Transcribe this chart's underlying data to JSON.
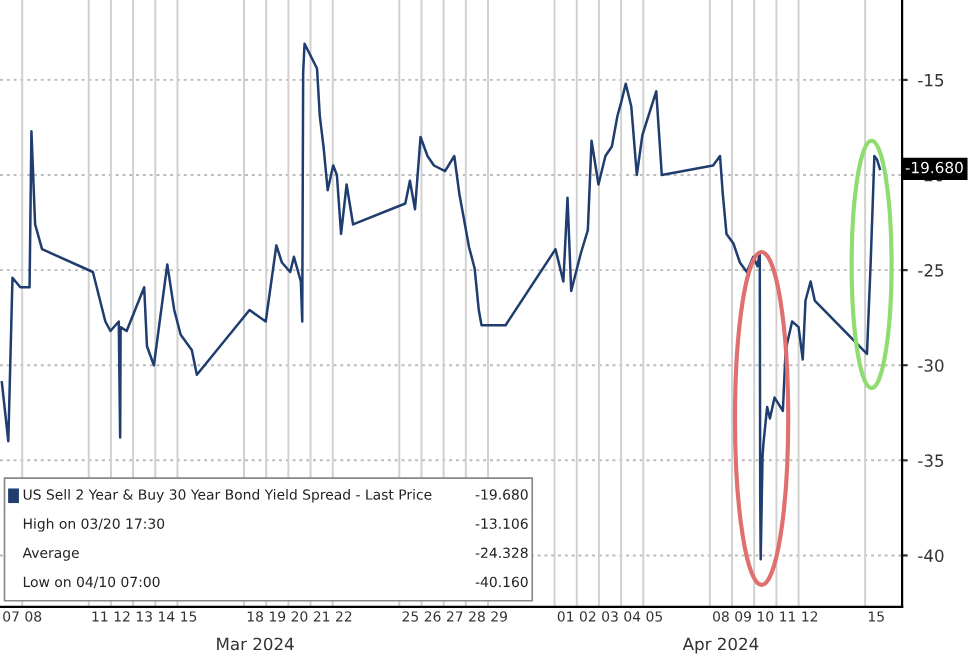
{
  "chart_data": {
    "type": "line",
    "x": [
      "2024-03-07T02:00",
      "2024-03-07T09:00",
      "2024-03-07T13:30",
      "2024-03-07T22:00",
      "2024-03-08T08:00",
      "2024-03-08T10:00",
      "2024-03-08T14:00",
      "2024-03-08T21:30",
      "2024-03-11T04:30",
      "2024-03-11T18:00",
      "2024-03-11T23:30",
      "2024-03-12T08:30",
      "2024-03-12T10:00",
      "2024-03-12T10:30",
      "2024-03-12T17:00",
      "2024-03-13T12:00",
      "2024-03-13T15:00",
      "2024-03-13T22:30",
      "2024-03-14T13:00",
      "2024-03-14T20:30",
      "2024-03-15T03:30",
      "2024-03-15T15:30",
      "2024-03-15T21:00",
      "2024-03-18T06:00",
      "2024-03-18T23:30",
      "2024-03-19T11:00",
      "2024-03-19T17:00",
      "2024-03-20T02:00",
      "2024-03-20T06:00",
      "2024-03-20T13:30",
      "2024-03-20T15:00",
      "2024-03-20T16:00",
      "2024-03-20T17:30",
      "2024-03-21T07:00",
      "2024-03-21T10:00",
      "2024-03-21T14:00",
      "2024-03-21T18:30",
      "2024-03-22T00:30",
      "2024-03-22T04:30",
      "2024-03-22T09:00",
      "2024-03-22T15:00",
      "2024-03-22T22:00",
      "2024-03-25T06:30",
      "2024-03-25T11:30",
      "2024-03-25T17:00",
      "2024-03-25T23:00",
      "2024-03-26T06:30",
      "2024-03-26T13:30",
      "2024-03-27T01:30",
      "2024-03-27T11:30",
      "2024-03-27T17:00",
      "2024-03-28T03:30",
      "2024-03-28T09:30",
      "2024-03-28T14:00",
      "2024-03-28T17:00",
      "2024-03-29T19:00",
      "2024-04-01T01:00",
      "2024-04-01T09:30",
      "2024-04-01T14:00",
      "2024-04-01T18:00",
      "2024-04-02T04:30",
      "2024-04-02T12:00",
      "2024-04-02T16:00",
      "2024-04-02T23:30",
      "2024-04-03T07:00",
      "2024-04-03T14:00",
      "2024-04-03T20:00",
      "2024-04-04T00:30",
      "2024-04-04T05:00",
      "2024-04-04T11:00",
      "2024-04-04T17:00",
      "2024-04-04T23:00",
      "2024-04-05T05:30",
      "2024-04-05T14:00",
      "2024-04-05T20:00",
      "2024-04-08T03:30",
      "2024-04-08T11:00",
      "2024-04-08T14:00",
      "2024-04-08T18:00",
      "2024-04-09T01:30",
      "2024-04-09T08:30",
      "2024-04-09T16:00",
      "2024-04-09T23:00",
      "2024-04-10T03:30",
      "2024-04-10T06:00",
      "2024-04-10T06:30",
      "2024-04-10T07:00",
      "2024-04-10T09:00",
      "2024-04-10T10:00",
      "2024-04-10T14:00",
      "2024-04-10T17:00",
      "2024-04-10T22:00",
      "2024-04-11T07:00",
      "2024-04-11T10:00",
      "2024-04-11T17:00",
      "2024-04-12T00:00",
      "2024-04-12T04:30",
      "2024-04-12T07:30",
      "2024-04-12T13:00",
      "2024-04-12T17:30",
      "2024-04-15T02:00",
      "2024-04-15T06:00",
      "2024-04-15T10:00",
      "2024-04-15T13:00",
      "2024-04-15T16:00"
    ],
    "series": [
      {
        "name": "US Sell 2 Year & Buy 30 Year Bond Yield Spread - Last Price",
        "color": "#1f3d6e",
        "values": [
          -30.9,
          -34.0,
          -25.4,
          -25.9,
          -25.9,
          -17.7,
          -22.6,
          -23.9,
          -25.1,
          -27.7,
          -28.2,
          -27.7,
          -33.8,
          -28.0,
          -28.2,
          -25.9,
          -29.0,
          -30.0,
          -24.7,
          -27.1,
          -28.4,
          -29.2,
          -30.5,
          -27.1,
          -27.7,
          -23.7,
          -24.6,
          -25.1,
          -24.3,
          -25.6,
          -27.7,
          -14.6,
          -13.1,
          -14.4,
          -16.9,
          -18.5,
          -20.8,
          -19.5,
          -20.0,
          -23.1,
          -20.5,
          -22.6,
          -21.5,
          -20.3,
          -21.8,
          -18.0,
          -19.0,
          -19.5,
          -19.8,
          -19.0,
          -21.0,
          -23.8,
          -24.9,
          -27.1,
          -27.9,
          -27.9,
          -23.9,
          -25.6,
          -21.2,
          -26.1,
          -24.1,
          -22.9,
          -18.2,
          -20.5,
          -19.0,
          -18.5,
          -16.9,
          -16.1,
          -15.2,
          -16.4,
          -20.0,
          -17.9,
          -16.9,
          -15.6,
          -20.0,
          -19.5,
          -19.0,
          -21.0,
          -23.1,
          -23.6,
          -24.6,
          -25.1,
          -24.3,
          -24.8,
          -24.1,
          -37.0,
          -40.2,
          -34.8,
          -34.1,
          -32.2,
          -32.8,
          -31.7,
          -32.4,
          -29.2,
          -27.7,
          -28.0,
          -29.7,
          -26.6,
          -25.6,
          -26.6,
          -29.4,
          -24.6,
          -19.0,
          -19.2,
          -19.68
        ],
        "value_labels": [
          null,
          null,
          null,
          null,
          null,
          null,
          null,
          null,
          null,
          null,
          null,
          null,
          null,
          null,
          null,
          null,
          null,
          null,
          null,
          null,
          null,
          null,
          null,
          null,
          null,
          null,
          null,
          null,
          null,
          null,
          null,
          null,
          null,
          null,
          null,
          null,
          null,
          null,
          null,
          null,
          null,
          null,
          null,
          null,
          null,
          null,
          null,
          null,
          null,
          null,
          null,
          null,
          null,
          null,
          null,
          null,
          null,
          null,
          null,
          null,
          null,
          null,
          null,
          null,
          null,
          null,
          null,
          null,
          null,
          null,
          null,
          null,
          null,
          null,
          null,
          null,
          null,
          null,
          null,
          null,
          null,
          null,
          null,
          null,
          null,
          null,
          null,
          null,
          null,
          null,
          null,
          null,
          null,
          null,
          null,
          null,
          null,
          null,
          null,
          null,
          null,
          null,
          null,
          null,
          "-19.680"
        ]
      }
    ],
    "xlim": [
      "2024-03-07T00:00",
      "2024-04-16T16:00"
    ],
    "xticks": [
      {
        "value": "2024-03-07T12:00",
        "label": "07"
      },
      {
        "value": "2024-03-08T12:00",
        "label": "08"
      },
      {
        "value": "2024-03-11T12:00",
        "label": "11"
      },
      {
        "value": "2024-03-12T12:00",
        "label": "12"
      },
      {
        "value": "2024-03-13T12:00",
        "label": "13"
      },
      {
        "value": "2024-03-14T12:00",
        "label": "14"
      },
      {
        "value": "2024-03-15T12:00",
        "label": "15"
      },
      {
        "value": "2024-03-18T12:00",
        "label": "18"
      },
      {
        "value": "2024-03-19T12:00",
        "label": "19"
      },
      {
        "value": "2024-03-20T12:00",
        "label": "20"
      },
      {
        "value": "2024-03-21T12:00",
        "label": "21"
      },
      {
        "value": "2024-03-22T12:00",
        "label": "22"
      },
      {
        "value": "2024-03-25T12:00",
        "label": "25"
      },
      {
        "value": "2024-03-26T12:00",
        "label": "26"
      },
      {
        "value": "2024-03-27T12:00",
        "label": "27"
      },
      {
        "value": "2024-03-28T12:00",
        "label": "28"
      },
      {
        "value": "2024-03-29T12:00",
        "label": "29"
      },
      {
        "value": "2024-04-01T12:00",
        "label": "01"
      },
      {
        "value": "2024-04-02T12:00",
        "label": "02"
      },
      {
        "value": "2024-04-03T12:00",
        "label": "03"
      },
      {
        "value": "2024-04-04T12:00",
        "label": "04"
      },
      {
        "value": "2024-04-05T12:00",
        "label": "05"
      },
      {
        "value": "2024-04-08T12:00",
        "label": "08"
      },
      {
        "value": "2024-04-09T12:00",
        "label": "09"
      },
      {
        "value": "2024-04-10T12:00",
        "label": "10"
      },
      {
        "value": "2024-04-11T12:00",
        "label": "11"
      },
      {
        "value": "2024-04-12T12:00",
        "label": "12"
      },
      {
        "value": "2024-04-15T12:00",
        "label": "15"
      }
    ],
    "ylim": [
      -42.7,
      -10.8
    ],
    "yticks": [
      -15,
      -20,
      -25,
      -30,
      -35,
      -40
    ],
    "grid": true,
    "legend": "bottom left",
    "annotations": [
      "Mar 2024",
      "Apr 2024",
      "High on 03/20 17:30",
      "-13.106",
      "Average",
      "-24.328",
      "Low on 04/10 07:00",
      "-40.160"
    ]
  }
}
